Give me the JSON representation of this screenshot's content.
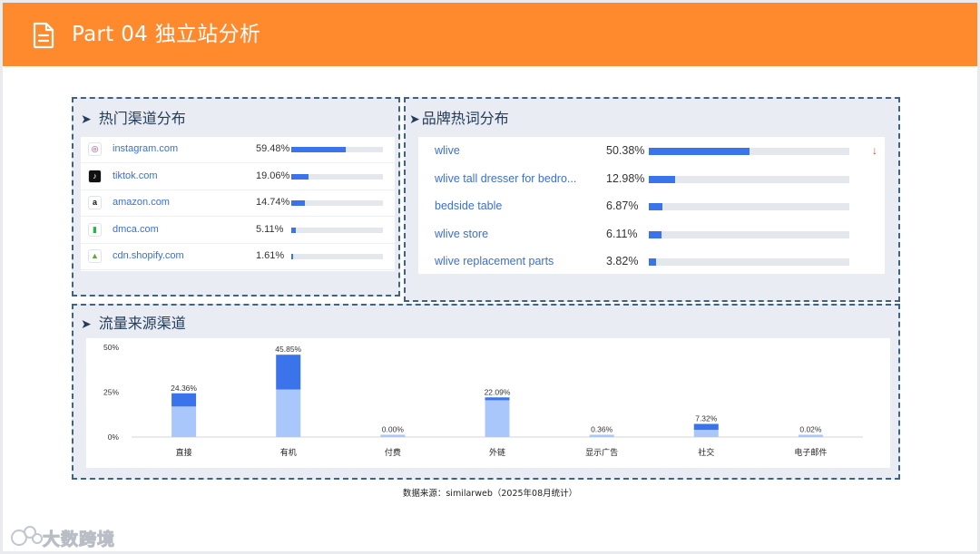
{
  "header": {
    "title": "Part 04 独立站分析",
    "icon": "document-icon",
    "color": "#ff8a2e"
  },
  "channels": {
    "title": "热门渠道分布",
    "items": [
      {
        "name": "instagram.com",
        "percent": "59.48%",
        "value": 59.48,
        "icon": "instagram-icon"
      },
      {
        "name": "tiktok.com",
        "percent": "19.06%",
        "value": 19.06,
        "icon": "tiktok-icon"
      },
      {
        "name": "amazon.com",
        "percent": "14.74%",
        "value": 14.74,
        "icon": "amazon-icon"
      },
      {
        "name": "dmca.com",
        "percent": "5.11%",
        "value": 5.11,
        "icon": "dmca-icon"
      },
      {
        "name": "cdn.shopify.com",
        "percent": "1.61%",
        "value": 1.61,
        "icon": "shopify-icon"
      }
    ]
  },
  "keywords": {
    "title": "品牌热词分布",
    "items": [
      {
        "name": "wlive",
        "percent": "50.38%",
        "value": 50.38,
        "trend": "↓"
      },
      {
        "name": "wlive tall dresser for bedro...",
        "percent": "12.98%",
        "value": 12.98,
        "trend": ""
      },
      {
        "name": "bedside table",
        "percent": "6.87%",
        "value": 6.87,
        "trend": ""
      },
      {
        "name": "wlive store",
        "percent": "6.11%",
        "value": 6.11,
        "trend": ""
      },
      {
        "name": "wlive replacement parts",
        "percent": "3.82%",
        "value": 3.82,
        "trend": ""
      }
    ]
  },
  "traffic": {
    "title": "流量来源渠道"
  },
  "chart_data": {
    "type": "bar",
    "categories": [
      "直接",
      "有机",
      "付费",
      "外链",
      "显示广告",
      "社交",
      "电子邮件"
    ],
    "values": [
      24.36,
      45.85,
      0.0,
      22.09,
      0.36,
      7.32,
      0.02
    ],
    "labels": [
      "24.36%",
      "45.85%",
      "0.00%",
      "22.09%",
      "0.36%",
      "7.32%",
      "0.02%"
    ],
    "stack_lower": [
      17.0,
      26.5,
      0.0,
      20.5,
      0.36,
      4.0,
      0.02
    ],
    "yticks": [
      "50%",
      "25%",
      "0%"
    ],
    "ylim": [
      0,
      50
    ],
    "colors": {
      "upper": "#3b73ea",
      "lower": "#a9c7fb"
    }
  },
  "footer": {
    "source": "数据来源：similarweb（2025年08月统计）",
    "watermark": "大数跨境"
  }
}
